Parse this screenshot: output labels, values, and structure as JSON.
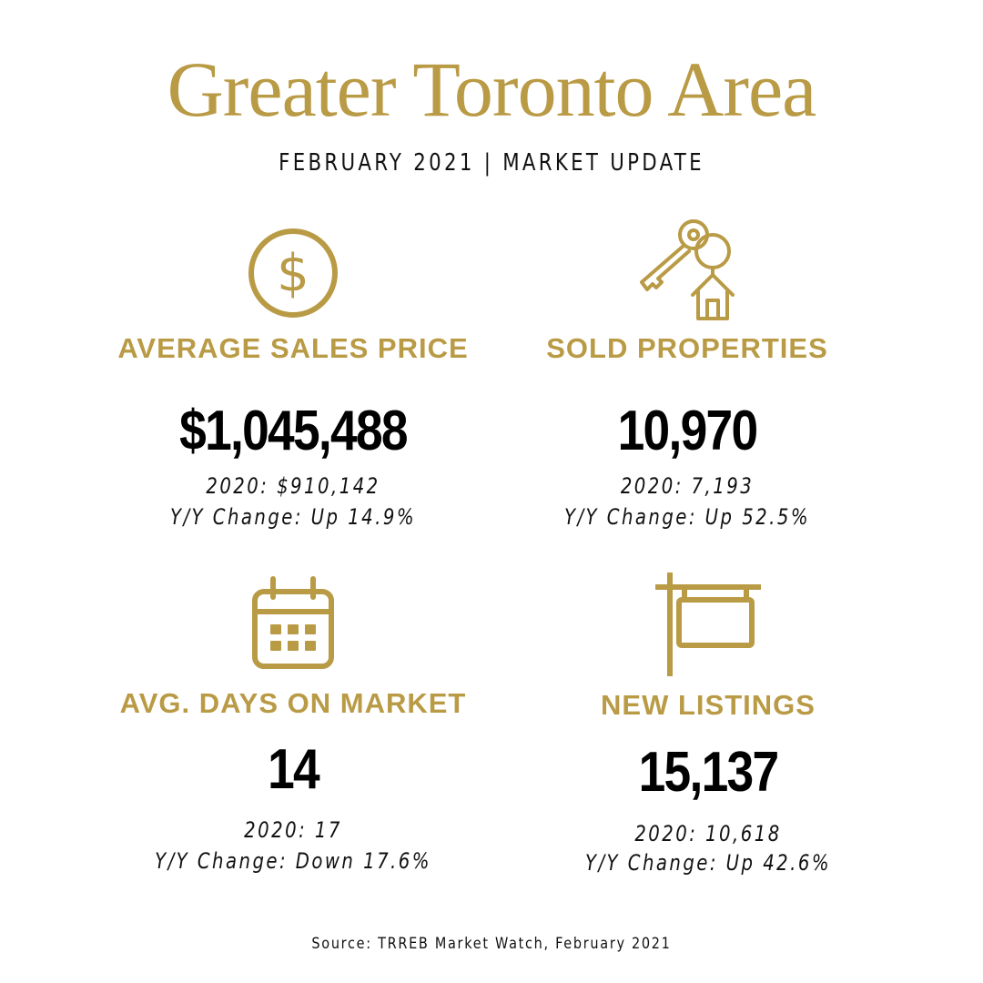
{
  "header": {
    "title": "Greater Toronto Area",
    "subtitle": "FEBRUARY 2021  |  MARKET UPDATE"
  },
  "colors": {
    "accent": "#b99a45",
    "text": "#111111",
    "value": "#000000"
  },
  "stats": [
    {
      "icon": "dollar-circle-icon",
      "label": "AVERAGE SALES PRICE",
      "value": "$1,045,488",
      "prev": "2020: $910,142",
      "change": "Y/Y Change: Up 14.9%"
    },
    {
      "icon": "house-key-icon",
      "label": "SOLD PROPERTIES",
      "value": "10,970",
      "prev": "2020: 7,193",
      "change": "Y/Y Change: Up 52.5%"
    },
    {
      "icon": "calendar-icon",
      "label": "AVG. DAYS ON MARKET",
      "value": "14",
      "prev": "2020: 17",
      "change": "Y/Y Change: Down 17.6%"
    },
    {
      "icon": "sign-post-icon",
      "label": "NEW LISTINGS",
      "value": "15,137",
      "prev": "2020: 10,618",
      "change": "Y/Y Change: Up 42.6%"
    }
  ],
  "footer": {
    "source": "Source: TRREB Market Watch, February 2021"
  }
}
